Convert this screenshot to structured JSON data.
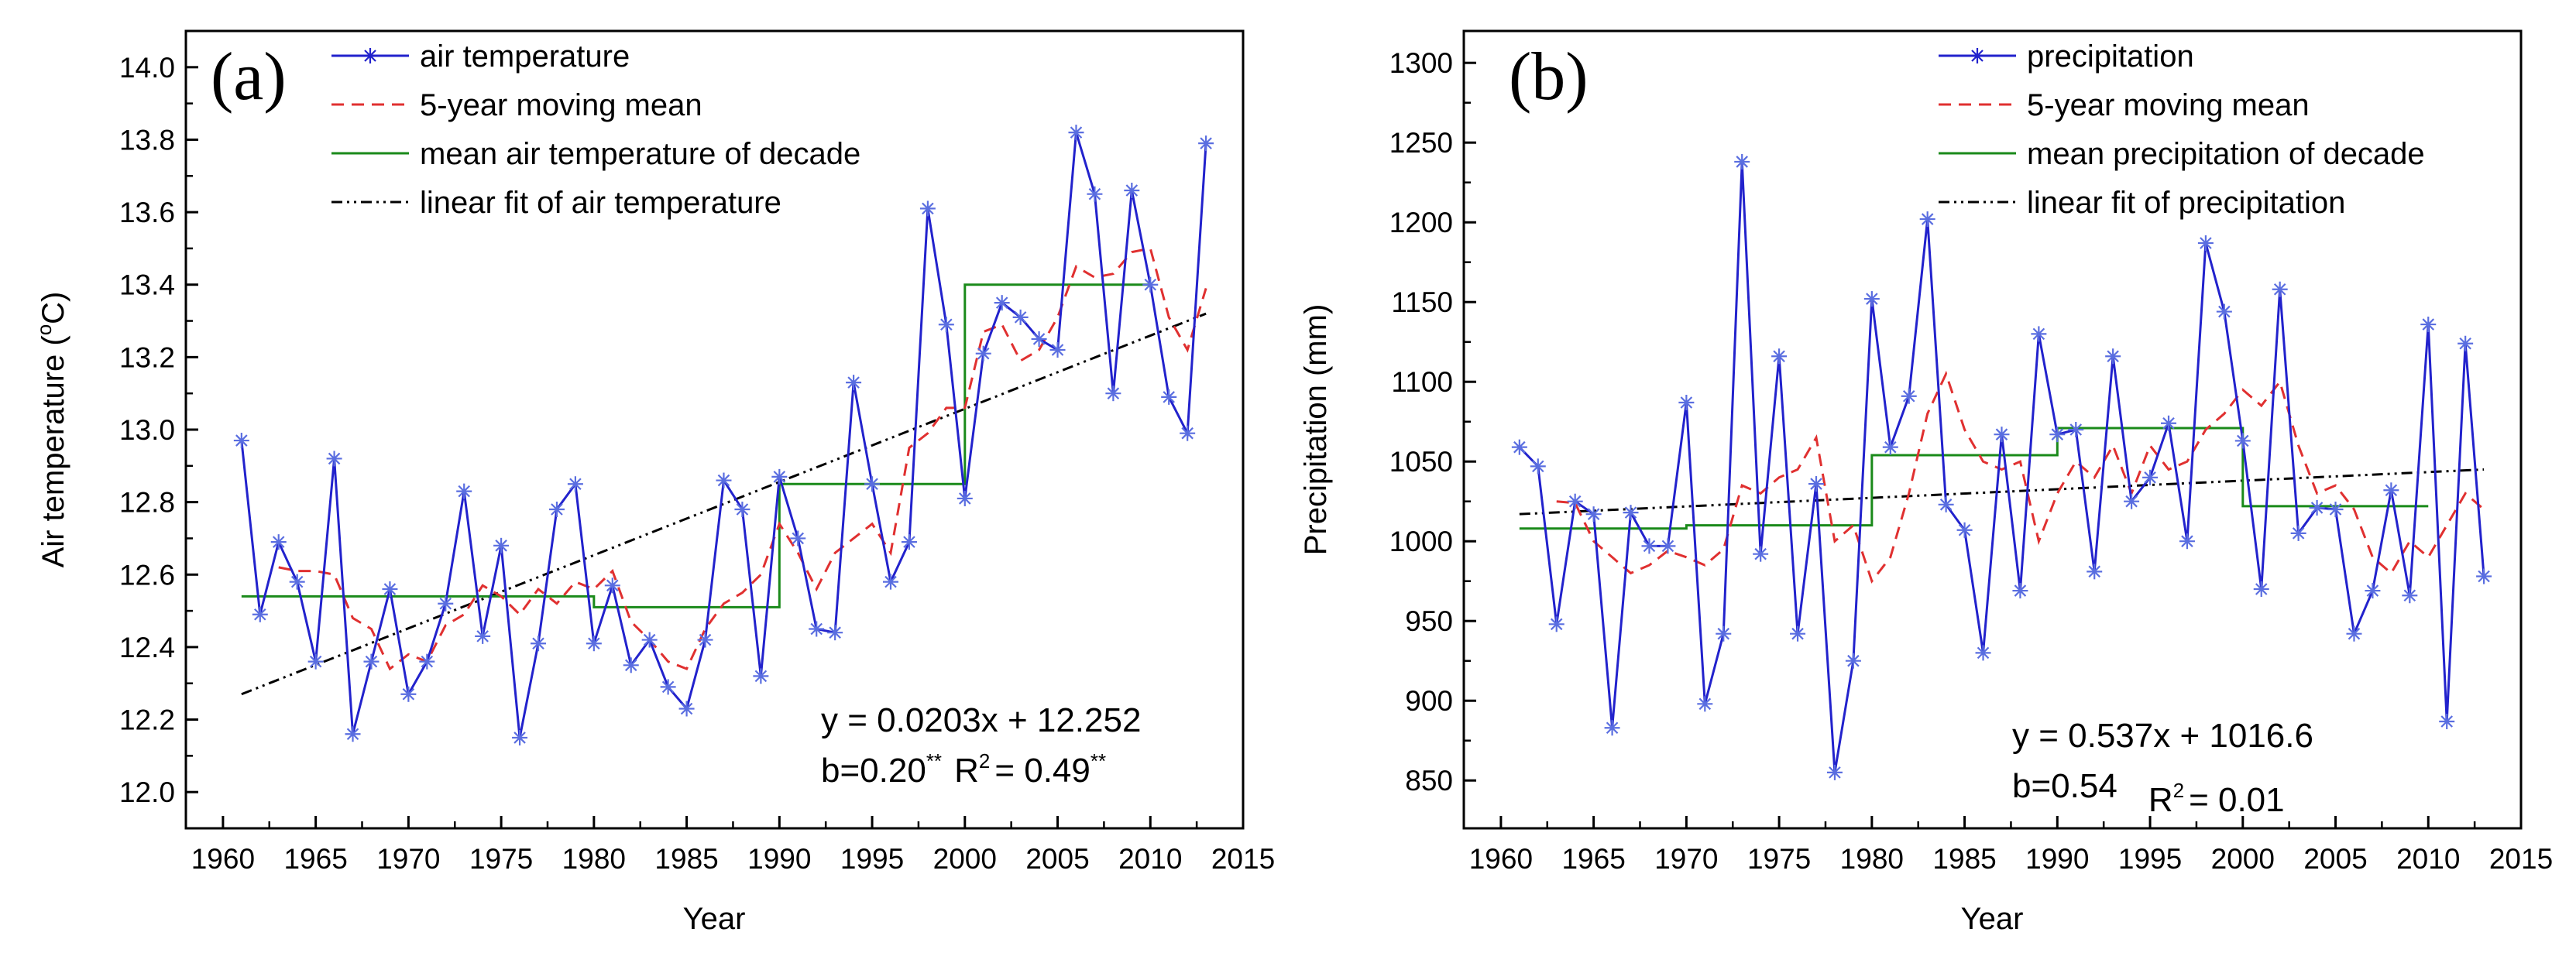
{
  "chart_data": [
    {
      "type": "line",
      "panel": "(a)",
      "xlabel": "Year",
      "ylabel": "Air temperature (°C)",
      "ylabel_parts": {
        "pre": "Air temperature (",
        "sup": "o",
        "post": "C)"
      },
      "xlim": [
        1958,
        2015
      ],
      "ylim": [
        11.9,
        14.1
      ],
      "x_ticks": [
        1960,
        1965,
        1970,
        1975,
        1980,
        1985,
        1990,
        1995,
        2000,
        2005,
        2010,
        2015
      ],
      "y_ticks": [
        12.0,
        12.2,
        12.4,
        12.6,
        12.8,
        13.0,
        13.2,
        13.4,
        13.6,
        13.8,
        14.0
      ],
      "y_tick_labels": [
        "12.0",
        "12.2",
        "12.4",
        "12.6",
        "12.8",
        "13.0",
        "13.2",
        "13.4",
        "13.6",
        "13.8",
        "14.0"
      ],
      "legend_position": "top-left",
      "legend": [
        "air temperature",
        "5-year moving mean",
        "mean air temperature of decade",
        "linear fit of air temperature"
      ],
      "years": [
        1961,
        1962,
        1963,
        1964,
        1965,
        1966,
        1967,
        1968,
        1969,
        1970,
        1971,
        1972,
        1973,
        1974,
        1975,
        1976,
        1977,
        1978,
        1979,
        1980,
        1981,
        1982,
        1983,
        1984,
        1985,
        1986,
        1987,
        1988,
        1989,
        1990,
        1991,
        1992,
        1993,
        1994,
        1995,
        1996,
        1997,
        1998,
        1999,
        2000,
        2001,
        2002,
        2003,
        2004,
        2005,
        2006,
        2007,
        2008,
        2009,
        2010,
        2011,
        2012,
        2013
      ],
      "series": [
        {
          "name": "air temperature",
          "color": "#2222cc",
          "values": [
            12.97,
            12.49,
            12.69,
            12.58,
            12.36,
            12.92,
            12.16,
            12.36,
            12.56,
            12.27,
            12.36,
            12.52,
            12.83,
            12.43,
            12.68,
            12.15,
            12.41,
            12.78,
            12.85,
            12.41,
            12.57,
            12.35,
            12.42,
            12.29,
            12.23,
            12.42,
            12.86,
            12.78,
            12.32,
            12.87,
            12.7,
            12.45,
            12.44,
            13.13,
            12.85,
            12.58,
            12.69,
            13.61,
            13.29,
            12.81,
            13.21,
            13.35,
            13.31,
            13.25,
            13.22,
            13.82,
            13.65,
            13.1,
            13.66,
            13.4,
            13.09,
            12.99,
            13.79
          ]
        },
        {
          "name": "5-year moving mean",
          "color": "#e03030",
          "x": [
            1963,
            1964,
            1965,
            1966,
            1967,
            1968,
            1969,
            1970,
            1971,
            1972,
            1973,
            1974,
            1975,
            1976,
            1977,
            1978,
            1979,
            1980,
            1981,
            1982,
            1983,
            1984,
            1985,
            1986,
            1987,
            1988,
            1989,
            1990,
            1991,
            1992,
            1993,
            1994,
            1995,
            1996,
            1997,
            1998,
            1999,
            2000,
            2001,
            2002,
            2003,
            2004,
            2005,
            2006,
            2007,
            2008,
            2009,
            2010,
            2011,
            2012,
            2013
          ],
          "values": [
            12.62,
            12.61,
            12.61,
            12.6,
            12.48,
            12.45,
            12.34,
            12.38,
            12.36,
            12.46,
            12.49,
            12.57,
            12.54,
            12.49,
            12.56,
            12.52,
            12.58,
            12.56,
            12.61,
            12.47,
            12.42,
            12.36,
            12.34,
            12.45,
            12.52,
            12.55,
            12.6,
            12.74,
            12.66,
            12.56,
            12.66,
            12.7,
            12.74,
            12.66,
            12.95,
            12.99,
            13.06,
            13.06,
            13.27,
            13.29,
            13.19,
            13.22,
            13.31,
            13.45,
            13.42,
            13.43,
            13.49,
            13.5,
            13.31,
            13.22,
            13.39
          ]
        },
        {
          "name": "mean air temperature of decade",
          "color": "#1a8a1a",
          "segments": [
            {
              "from": 1961,
              "to": 1970,
              "value": 12.54
            },
            {
              "from": 1970,
              "to": 1980,
              "value": 12.54
            },
            {
              "from": 1980,
              "to": 1990,
              "value": 12.51
            },
            {
              "from": 1990,
              "to": 2000,
              "value": 12.85
            },
            {
              "from": 2000,
              "to": 2010,
              "value": 13.4
            }
          ]
        },
        {
          "name": "linear fit of air temperature",
          "color": "#000000",
          "x": [
            1961,
            2013
          ],
          "values": [
            12.27,
            13.32
          ]
        }
      ],
      "annotations": {
        "equation": "y = 0.0203x + 12.252",
        "b_label": "b=0.20",
        "b_sig": "**",
        "r2_label": "R",
        "r2_sup": "2",
        "r2_value": "= 0.49",
        "r2_sig": "**"
      }
    },
    {
      "type": "line",
      "panel": "(b)",
      "xlabel": "Year",
      "ylabel": "Precipitation (mm)",
      "xlim": [
        1958,
        2015
      ],
      "ylim": [
        820,
        1320
      ],
      "x_ticks": [
        1960,
        1965,
        1970,
        1975,
        1980,
        1985,
        1990,
        1995,
        2000,
        2005,
        2010,
        2015
      ],
      "y_ticks": [
        850,
        900,
        950,
        1000,
        1050,
        1100,
        1150,
        1200,
        1250,
        1300
      ],
      "y_tick_labels": [
        "850",
        "900",
        "950",
        "1000",
        "1050",
        "1100",
        "1150",
        "1200",
        "1250",
        "1300"
      ],
      "legend_position": "top-right",
      "legend": [
        "precipitation",
        "5-year moving mean",
        "mean precipitation of decade",
        "linear fit of precipitation"
      ],
      "years": [
        1961,
        1962,
        1963,
        1964,
        1965,
        1966,
        1967,
        1968,
        1969,
        1970,
        1971,
        1972,
        1973,
        1974,
        1975,
        1976,
        1977,
        1978,
        1979,
        1980,
        1981,
        1982,
        1983,
        1984,
        1985,
        1986,
        1987,
        1988,
        1989,
        1990,
        1991,
        1992,
        1993,
        1994,
        1995,
        1996,
        1997,
        1998,
        1999,
        2000,
        2001,
        2002,
        2003,
        2004,
        2005,
        2006,
        2007,
        2008,
        2009,
        2010,
        2011,
        2012,
        2013
      ],
      "series": [
        {
          "name": "precipitation",
          "color": "#2222cc",
          "values": [
            1059,
            1047,
            948,
            1025,
            1017,
            883,
            1018,
            997,
            997,
            1087,
            898,
            942,
            1238,
            992,
            1116,
            942,
            1036,
            855,
            925,
            1152,
            1059,
            1091,
            1202,
            1023,
            1007,
            930,
            1067,
            969,
            1130,
            1067,
            1070,
            981,
            1116,
            1025,
            1040,
            1074,
            1000,
            1187,
            1144,
            1063,
            970,
            1158,
            1005,
            1021,
            1020,
            942,
            969,
            1032,
            966,
            1136,
            887,
            1124,
            978
          ]
        },
        {
          "name": "5-year moving mean",
          "color": "#e03030",
          "x": [
            1963,
            1964,
            1965,
            1966,
            1967,
            1968,
            1969,
            1970,
            1971,
            1972,
            1973,
            1974,
            1975,
            1976,
            1977,
            1978,
            1979,
            1980,
            1981,
            1982,
            1983,
            1984,
            1985,
            1986,
            1987,
            1988,
            1989,
            1990,
            1991,
            1992,
            1993,
            1994,
            1995,
            1996,
            1997,
            1998,
            1999,
            2000,
            2001,
            2002,
            2003,
            2004,
            2005,
            2006,
            2007,
            2008,
            2009,
            2010,
            2011,
            2012,
            2013
          ],
          "values": [
            1025,
            1024,
            1000,
            990,
            980,
            985,
            994,
            990,
            985,
            995,
            1035,
            1030,
            1040,
            1045,
            1065,
            1000,
            1010,
            975,
            990,
            1030,
            1080,
            1105,
            1070,
            1050,
            1045,
            1050,
            1000,
            1030,
            1050,
            1040,
            1060,
            1030,
            1060,
            1045,
            1050,
            1070,
            1080,
            1095,
            1085,
            1100,
            1060,
            1030,
            1035,
            1020,
            990,
            980,
            1000,
            990,
            1010,
            1030,
            1020
          ]
        },
        {
          "name": "mean precipitation of decade",
          "color": "#1a8a1a",
          "segments": [
            {
              "from": 1961,
              "to": 1970,
              "value": 1008
            },
            {
              "from": 1970,
              "to": 1980,
              "value": 1010
            },
            {
              "from": 1980,
              "to": 1990,
              "value": 1054
            },
            {
              "from": 1990,
              "to": 2000,
              "value": 1071
            },
            {
              "from": 2000,
              "to": 2010,
              "value": 1022
            }
          ]
        },
        {
          "name": "linear fit of precipitation",
          "color": "#000000",
          "x": [
            1961,
            2013
          ],
          "values": [
            1017,
            1045
          ]
        }
      ],
      "annotations": {
        "equation": "y = 0.537x + 1016.6",
        "b_label": "b=0.54",
        "b_sig": "",
        "r2_label": "R",
        "r2_sup": "2",
        "r2_value": "= 0.01",
        "r2_sig": ""
      }
    }
  ]
}
